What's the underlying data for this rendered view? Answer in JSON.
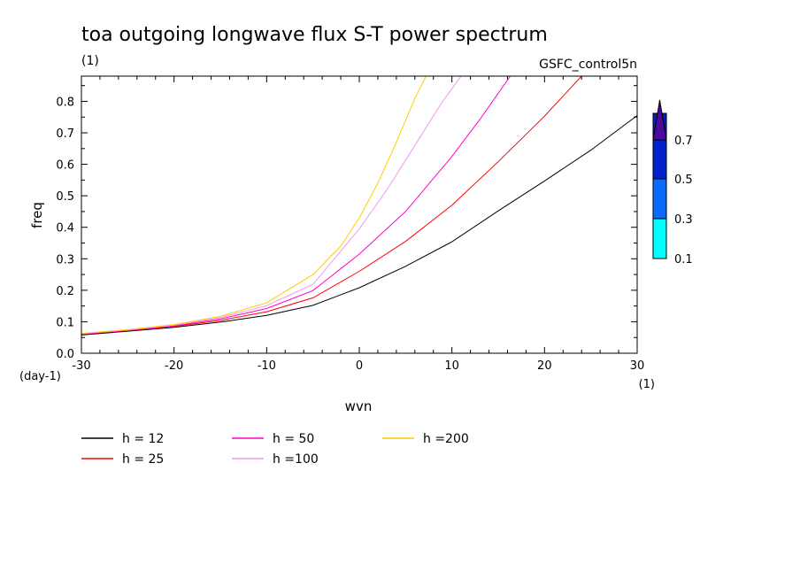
{
  "chart_data": {
    "type": "line",
    "title": "toa outgoing longwave flux S-T power spectrum",
    "subtitle": "(1)",
    "source_label": "GSFC_control5n",
    "xlabel": "wvn",
    "ylabel": "freq",
    "x_unit": "(1)",
    "y_unit": "(day-1)",
    "xlim": [
      -30,
      30
    ],
    "ylim": [
      0,
      0.88
    ],
    "x_ticks": [
      -30,
      -20,
      -10,
      0,
      10,
      20,
      30
    ],
    "y_ticks": [
      0.0,
      0.1,
      0.2,
      0.3,
      0.4,
      0.5,
      0.6,
      0.7,
      0.8
    ],
    "x_tick_labels": [
      "-30",
      "-20",
      "-10",
      "0",
      "10",
      "20",
      "30"
    ],
    "y_tick_labels": [
      "0.0",
      "0.1",
      "0.2",
      "0.3",
      "0.4",
      "0.5",
      "0.6",
      "0.7",
      "0.8"
    ],
    "grid": false,
    "legend_position": "bottom",
    "series": [
      {
        "name": "h = 12",
        "color": "#000000",
        "x": [
          -30,
          -25,
          -20,
          -15,
          -10,
          -5,
          0,
          5,
          10,
          15,
          20,
          25,
          30
        ],
        "y": [
          0.058,
          0.07,
          0.082,
          0.099,
          0.12,
          0.152,
          0.208,
          0.276,
          0.354,
          0.452,
          0.547,
          0.645,
          0.755
        ]
      },
      {
        "name": "h = 25",
        "color": "#ff0000",
        "x": [
          -30,
          -25,
          -20,
          -15,
          -10,
          -5,
          0,
          5,
          10,
          15,
          20,
          24
        ],
        "y": [
          0.06,
          0.072,
          0.085,
          0.104,
          0.132,
          0.176,
          0.26,
          0.355,
          0.47,
          0.608,
          0.753,
          0.88
        ]
      },
      {
        "name": "h = 50",
        "color": "#ff00cc",
        "x": [
          -30,
          -25,
          -20,
          -15,
          -10,
          -5,
          0,
          5,
          10,
          13,
          16.3
        ],
        "y": [
          0.061,
          0.073,
          0.087,
          0.109,
          0.142,
          0.199,
          0.315,
          0.45,
          0.625,
          0.742,
          0.88
        ]
      },
      {
        "name": "h =100",
        "color": "#ee99ee",
        "x": [
          -30,
          -25,
          -20,
          -15,
          -10,
          -5,
          0,
          3,
          6,
          9,
          11
        ],
        "y": [
          0.062,
          0.074,
          0.089,
          0.113,
          0.151,
          0.219,
          0.395,
          0.52,
          0.66,
          0.8,
          0.88
        ]
      },
      {
        "name": "h =200",
        "color": "#ffcc00",
        "x": [
          -30,
          -25,
          -20,
          -15,
          -10,
          -5,
          -2,
          0,
          2,
          4,
          6,
          7.2
        ],
        "y": [
          0.063,
          0.075,
          0.091,
          0.117,
          0.16,
          0.25,
          0.34,
          0.43,
          0.54,
          0.67,
          0.81,
          0.88
        ]
      }
    ],
    "colorbar": {
      "labels": [
        "0.1",
        "0.3",
        "0.5",
        "0.7"
      ],
      "colors": [
        "#00ffff",
        "#0a6cff",
        "#0022cc",
        "#0a1bb3",
        "#4b0a9f"
      ]
    }
  }
}
